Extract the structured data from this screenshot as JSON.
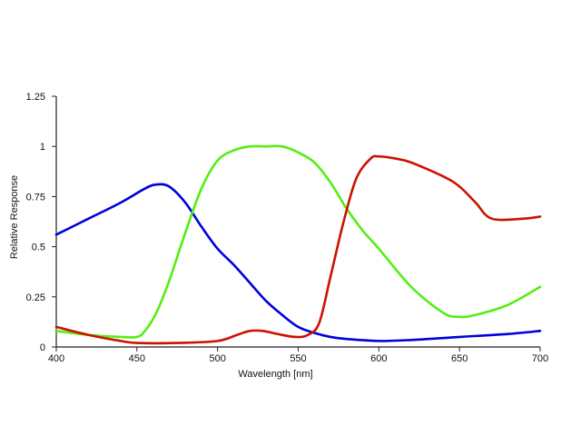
{
  "chart_data": {
    "type": "line",
    "title": "",
    "xlabel": "Wavelength [nm]",
    "ylabel": "Relative Response",
    "xlim": [
      400,
      700
    ],
    "ylim": [
      0,
      1.25
    ],
    "grid": false,
    "legend": "none",
    "x_ticks": [
      400,
      450,
      500,
      550,
      600,
      650,
      700
    ],
    "y_ticks": [
      0,
      0.25,
      0.5,
      0.75,
      1,
      1.25
    ],
    "x_tick_labels": [
      "400",
      "450",
      "500",
      "550",
      "600",
      "650",
      "700"
    ],
    "y_tick_labels": [
      "0",
      "0.25",
      "0.5",
      "0.75",
      "1",
      "1.25"
    ],
    "series": [
      {
        "color": "#0000dd",
        "x": [
          400,
          420,
          440,
          455,
          462,
          470,
          480,
          490,
          500,
          510,
          520,
          530,
          540,
          550,
          560,
          570,
          580,
          600,
          620,
          650,
          680,
          700
        ],
        "y": [
          0.56,
          0.64,
          0.72,
          0.79,
          0.81,
          0.8,
          0.72,
          0.6,
          0.49,
          0.41,
          0.32,
          0.23,
          0.16,
          0.1,
          0.07,
          0.05,
          0.04,
          0.03,
          0.035,
          0.05,
          0.065,
          0.08
        ]
      },
      {
        "color": "#55ee11",
        "x": [
          400,
          420,
          440,
          450,
          455,
          462,
          470,
          480,
          490,
          500,
          510,
          520,
          530,
          540,
          550,
          560,
          570,
          580,
          590,
          600,
          620,
          640,
          650,
          660,
          680,
          700
        ],
        "y": [
          0.08,
          0.06,
          0.05,
          0.05,
          0.08,
          0.17,
          0.33,
          0.57,
          0.79,
          0.93,
          0.98,
          1.0,
          1.0,
          1.0,
          0.97,
          0.92,
          0.82,
          0.69,
          0.58,
          0.49,
          0.3,
          0.17,
          0.15,
          0.16,
          0.21,
          0.3
        ]
      },
      {
        "color": "#cc1100",
        "x": [
          400,
          420,
          440,
          450,
          475,
          500,
          512,
          520,
          528,
          537,
          548,
          556,
          563,
          570,
          578,
          586,
          595,
          600,
          610,
          620,
          640,
          650,
          660,
          670,
          690,
          700
        ],
        "y": [
          0.1,
          0.06,
          0.03,
          0.02,
          0.02,
          0.03,
          0.06,
          0.08,
          0.08,
          0.065,
          0.05,
          0.06,
          0.12,
          0.35,
          0.62,
          0.84,
          0.94,
          0.95,
          0.94,
          0.92,
          0.85,
          0.8,
          0.72,
          0.64,
          0.64,
          0.65
        ]
      }
    ]
  }
}
